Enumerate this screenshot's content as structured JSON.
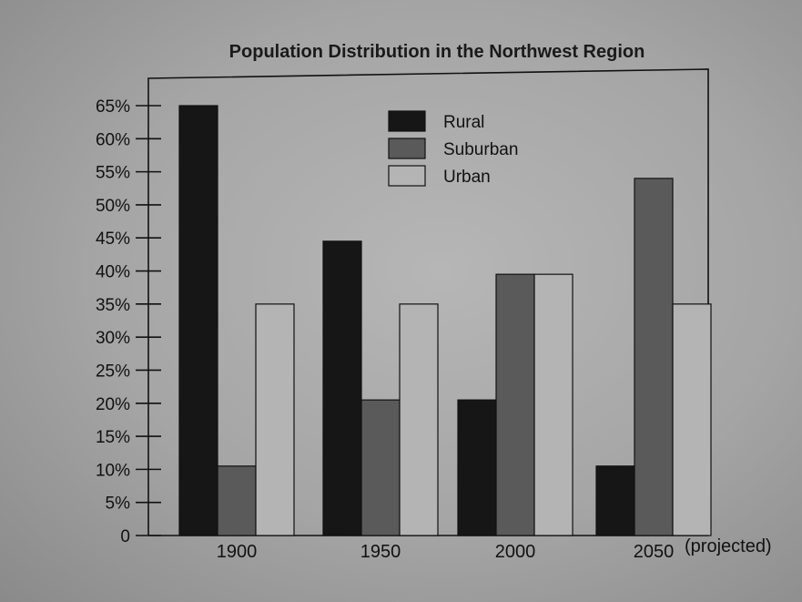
{
  "chart_data": {
    "type": "bar",
    "title": "Population Distribution in the Northwest Region",
    "xlabel": "",
    "ylabel": "",
    "categories": [
      "1900",
      "1950",
      "2000",
      "2050"
    ],
    "category_suffix": [
      "",
      "",
      "",
      "(projected)"
    ],
    "ylim": [
      0,
      65
    ],
    "yticks": [
      0,
      5,
      10,
      15,
      20,
      25,
      30,
      35,
      40,
      45,
      50,
      55,
      60,
      65
    ],
    "ytick_labels": [
      "0",
      "5%",
      "10%",
      "15%",
      "20%",
      "25%",
      "30%",
      "35%",
      "40%",
      "45%",
      "50%",
      "55%",
      "60%",
      "65%"
    ],
    "legend_position": "top-center",
    "grid": false,
    "series": [
      {
        "name": "Rural",
        "color": "#161616",
        "values": [
          65,
          44.5,
          20.5,
          10.5
        ]
      },
      {
        "name": "Suburban",
        "color": "#5a5a5a",
        "values": [
          10.5,
          20.5,
          39.5,
          54
        ]
      },
      {
        "name": "Urban",
        "color": "#b4b4b4",
        "values": [
          35,
          35,
          39.5,
          35
        ]
      }
    ]
  }
}
